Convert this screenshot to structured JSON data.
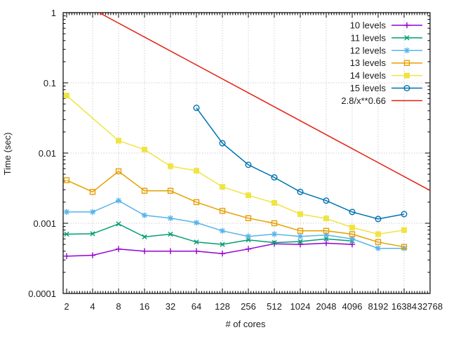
{
  "chart_data": {
    "type": "line",
    "title": "",
    "xlabel": "# of cores",
    "ylabel": "Time (sec)",
    "x_scale": "log2",
    "y_scale": "log10",
    "xlim": [
      1.8,
      32768
    ],
    "ylim": [
      0.0001,
      1
    ],
    "grid": "dotted",
    "grid_color": "#b8b8b8",
    "border_color": "#000000",
    "background_color": "#ffffff",
    "legend_position": "top-right-inside",
    "x_ticks": [
      2,
      4,
      8,
      16,
      32,
      64,
      128,
      256,
      512,
      1024,
      2048,
      4096,
      8192,
      16384,
      32768
    ],
    "y_ticks": [
      {
        "value": 1,
        "label": "1"
      },
      {
        "value": 0.1,
        "label": "0.1"
      },
      {
        "value": 0.01,
        "label": "0.01"
      },
      {
        "value": 0.001,
        "label": "0.001"
      },
      {
        "value": 0.0001,
        "label": "0.0001"
      }
    ],
    "series": [
      {
        "name": "10 levels",
        "color": "#9400d3",
        "marker": "plus",
        "points": [
          [
            2,
            0.00034
          ],
          [
            4,
            0.00035
          ],
          [
            8,
            0.00043
          ],
          [
            16,
            0.0004
          ],
          [
            32,
            0.0004
          ],
          [
            64,
            0.0004
          ],
          [
            128,
            0.00037
          ],
          [
            256,
            0.00043
          ],
          [
            512,
            0.00051
          ],
          [
            1024,
            0.0005
          ],
          [
            2048,
            0.00052
          ],
          [
            4096,
            0.0005
          ]
        ]
      },
      {
        "name": "11 levels",
        "color": "#009e73",
        "marker": "x",
        "points": [
          [
            2,
            0.0007
          ],
          [
            4,
            0.00071
          ],
          [
            8,
            0.00098
          ],
          [
            16,
            0.00064
          ],
          [
            32,
            0.0007
          ],
          [
            64,
            0.00054
          ],
          [
            128,
            0.0005
          ],
          [
            256,
            0.00058
          ],
          [
            512,
            0.00053
          ],
          [
            1024,
            0.00055
          ],
          [
            2048,
            0.0006
          ],
          [
            4096,
            0.00056
          ]
        ]
      },
      {
        "name": "12 levels",
        "color": "#56b4e9",
        "marker": "asterisk",
        "points": [
          [
            2,
            0.00145
          ],
          [
            4,
            0.00145
          ],
          [
            8,
            0.0021
          ],
          [
            16,
            0.0013
          ],
          [
            32,
            0.00118
          ],
          [
            64,
            0.00102
          ],
          [
            128,
            0.00078
          ],
          [
            256,
            0.00065
          ],
          [
            512,
            0.0007
          ],
          [
            1024,
            0.00065
          ],
          [
            2048,
            0.00068
          ],
          [
            4096,
            0.0006
          ],
          [
            8192,
            0.00044
          ],
          [
            16384,
            0.00044
          ]
        ]
      },
      {
        "name": "13 levels",
        "color": "#e69f00",
        "marker": "square-open",
        "points": [
          [
            2,
            0.0041
          ],
          [
            4,
            0.0028
          ],
          [
            8,
            0.0055
          ],
          [
            16,
            0.0029
          ],
          [
            32,
            0.0029
          ],
          [
            64,
            0.002
          ],
          [
            128,
            0.0015
          ],
          [
            256,
            0.00118
          ],
          [
            512,
            0.001
          ],
          [
            1024,
            0.00078
          ],
          [
            2048,
            0.00078
          ],
          [
            4096,
            0.0007
          ],
          [
            8192,
            0.00054
          ],
          [
            16384,
            0.00046
          ]
        ]
      },
      {
        "name": "14 levels",
        "color": "#f0e442",
        "marker": "square-filled",
        "points": [
          [
            2,
            0.066
          ],
          [
            8,
            0.015
          ],
          [
            16,
            0.0112
          ],
          [
            32,
            0.0065
          ],
          [
            64,
            0.0056
          ],
          [
            128,
            0.0033
          ],
          [
            256,
            0.0025
          ],
          [
            512,
            0.00195
          ],
          [
            1024,
            0.00135
          ],
          [
            2048,
            0.00117
          ],
          [
            4096,
            0.00087
          ],
          [
            8192,
            0.0007
          ],
          [
            16384,
            0.0008
          ]
        ]
      },
      {
        "name": "15 levels",
        "color": "#0072b2",
        "marker": "circle-open",
        "points": [
          [
            64,
            0.044
          ],
          [
            128,
            0.0138
          ],
          [
            256,
            0.0068
          ],
          [
            512,
            0.0045
          ],
          [
            1024,
            0.0028
          ],
          [
            2048,
            0.0021
          ],
          [
            4096,
            0.00145
          ],
          [
            8192,
            0.00115
          ],
          [
            16384,
            0.00135
          ]
        ]
      },
      {
        "name": "2.8/x**0.66",
        "color": "#e51e10",
        "marker": "none",
        "function": "2.8/x**0.66",
        "points": [
          [
            4.755,
            1.0
          ],
          [
            32768,
            0.00293
          ]
        ]
      }
    ]
  }
}
